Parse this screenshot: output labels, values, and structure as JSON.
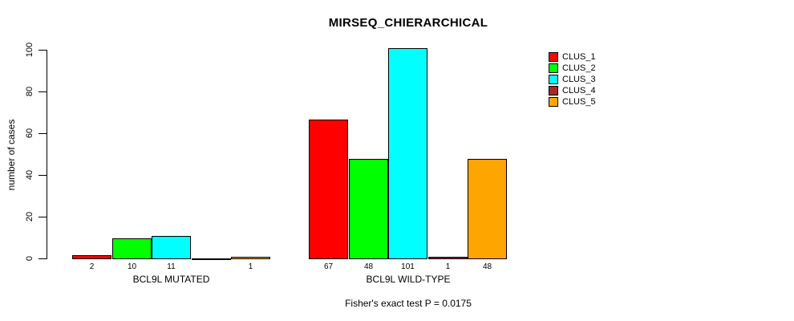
{
  "chart_data": {
    "type": "bar",
    "title": "MIRSEQ_CHIERARCHICAL",
    "ylabel": "number of cases",
    "xlabel": "",
    "groups": [
      "BCL9L MUTATED",
      "BCL9L WILD-TYPE"
    ],
    "series": [
      {
        "name": "CLUS_1",
        "color": "#FF0000",
        "values": [
          2,
          67
        ]
      },
      {
        "name": "CLUS_2",
        "color": "#00FF00",
        "values": [
          10,
          48
        ]
      },
      {
        "name": "CLUS_3",
        "color": "#00FFFF",
        "values": [
          11,
          101
        ]
      },
      {
        "name": "CLUS_4",
        "color": "#A52A2A",
        "values": [
          0,
          1
        ]
      },
      {
        "name": "CLUS_5",
        "color": "#FFA500",
        "values": [
          1,
          48
        ]
      }
    ],
    "bar_value_labels": [
      [
        "2",
        "10",
        "11",
        "",
        "1"
      ],
      [
        "67",
        "48",
        "101",
        "1",
        "48"
      ]
    ],
    "ylim": [
      0,
      100
    ],
    "yticks": [
      0,
      20,
      40,
      60,
      80,
      100
    ],
    "grid": false,
    "legend_position": "right",
    "annotation": "Fisher's exact test P = 0.0175"
  }
}
